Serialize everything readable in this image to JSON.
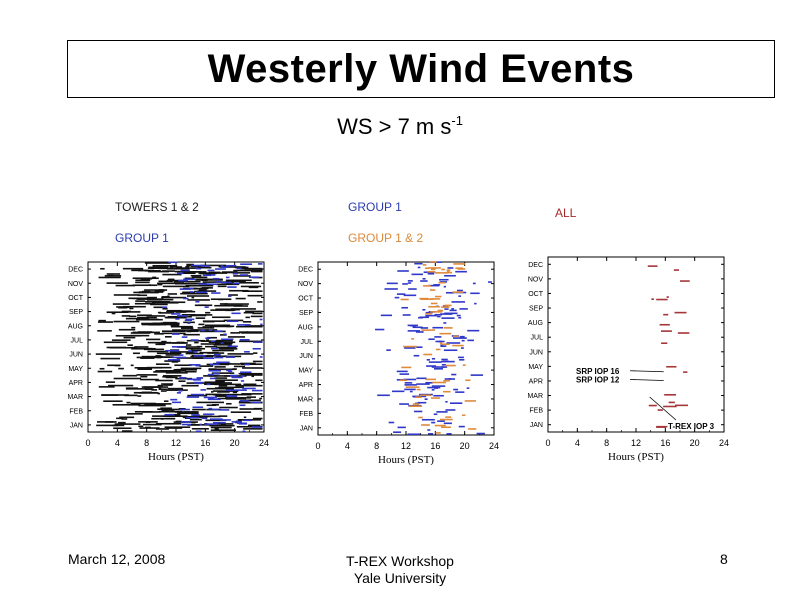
{
  "slide": {
    "title": "Westerly Wind Events",
    "subtitle_main": "WS > 7 m s",
    "subtitle_sup": "-1"
  },
  "labels": {
    "p1_line1": "TOWERS 1 & 2",
    "p1_line2": "GROUP 1",
    "p2_line1": "GROUP 1",
    "p2_line2": "GROUP 1 & 2",
    "p3_line1": "ALL"
  },
  "colors": {
    "towers": "#111111",
    "group1": "#2f38c8",
    "group12": "#e08a3c",
    "all": "#a5363a",
    "label_dark": "#222222",
    "label_blue": "#2b3cb0",
    "label_orange": "#d98a3a",
    "label_red": "#a52a2a"
  },
  "footer": {
    "date": "March 12, 2008",
    "center_line1": "T-REX Workshop",
    "center_line2": "Yale University",
    "page": "8"
  },
  "chart_data": [
    {
      "type": "scatter",
      "xlabel": "Hours (PST)",
      "xlim": [
        0,
        24
      ],
      "xticks": [
        "0",
        "4",
        "8",
        "12",
        "16",
        "20",
        "24"
      ],
      "yticks": [
        "JAN",
        "FEB",
        "MAR",
        "APR",
        "MAY",
        "JUN",
        "JUL",
        "AUG",
        "SEP",
        "OCT",
        "NOV",
        "DEC"
      ],
      "series": [
        {
          "color_key": "towers",
          "density": "high",
          "hour_center": 15.5,
          "hour_spread": 5
        },
        {
          "color_key": "group1",
          "density": "medium",
          "hour_center": 17,
          "hour_spread": 3
        }
      ]
    },
    {
      "type": "scatter",
      "xlabel": "Hours (PST)",
      "xlim": [
        0,
        24
      ],
      "xticks": [
        "0",
        "4",
        "8",
        "12",
        "16",
        "20",
        "24"
      ],
      "yticks": [
        "JAN",
        "FEB",
        "MAR",
        "APR",
        "MAY",
        "JUN",
        "JUL",
        "AUG",
        "SEP",
        "OCT",
        "NOV",
        "DEC"
      ],
      "series": [
        {
          "color_key": "group1",
          "density": "medium",
          "hour_center": 16,
          "hour_spread": 3
        },
        {
          "color_key": "group12",
          "density": "low",
          "hour_center": 16.5,
          "hour_spread": 2.5
        }
      ]
    },
    {
      "type": "scatter",
      "xlabel": "Hours (PST)",
      "xlim": [
        0,
        24
      ],
      "xticks": [
        "0",
        "4",
        "8",
        "12",
        "16",
        "20",
        "24"
      ],
      "yticks": [
        "JAN",
        "FEB",
        "MAR",
        "APR",
        "MAY",
        "JUN",
        "JUL",
        "AUG",
        "SEP",
        "OCT",
        "NOV",
        "DEC"
      ],
      "series": [
        {
          "color_key": "all",
          "density": "sparse",
          "hour_center": 16.5,
          "hour_spread": 1.5
        }
      ],
      "annotations": [
        {
          "text": "SRP IOP 16",
          "hour": 15.5,
          "month_index": 3.7
        },
        {
          "text": "SRP IOP 12",
          "hour": 15.5,
          "month_index": 3.1
        },
        {
          "text": "T-REX IOP 3",
          "hour": 14,
          "month_index": 1.9
        }
      ]
    }
  ]
}
